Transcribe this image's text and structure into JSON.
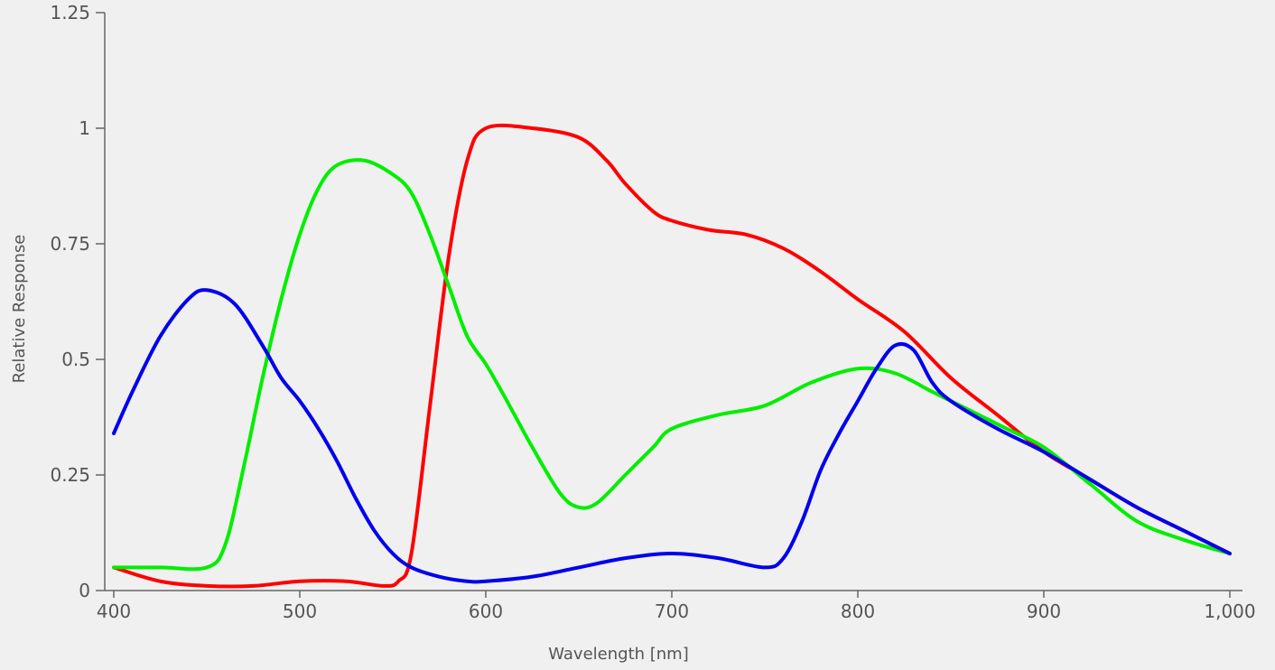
{
  "chart_data": {
    "type": "line",
    "title": "",
    "xlabel": "Wavelength [nm]",
    "ylabel": "Relative Response",
    "xlim": [
      400,
      1000
    ],
    "ylim": [
      0,
      1.25
    ],
    "x_ticks": [
      {
        "value": 400,
        "label": "400"
      },
      {
        "value": 500,
        "label": "500"
      },
      {
        "value": 600,
        "label": "600"
      },
      {
        "value": 700,
        "label": "700"
      },
      {
        "value": 800,
        "label": "800"
      },
      {
        "value": 900,
        "label": "900"
      },
      {
        "value": 1000,
        "label": "1,000"
      }
    ],
    "y_ticks": [
      {
        "value": 0,
        "label": "0"
      },
      {
        "value": 0.25,
        "label": "0.25"
      },
      {
        "value": 0.5,
        "label": "0.5"
      },
      {
        "value": 0.75,
        "label": "0.75"
      },
      {
        "value": 1,
        "label": "1"
      },
      {
        "value": 1.25,
        "label": "1.25"
      }
    ],
    "grid": false,
    "legend": "none",
    "series": [
      {
        "color": "#ff0000",
        "points": [
          [
            400,
            0.05
          ],
          [
            425,
            0.02
          ],
          [
            450,
            0.01
          ],
          [
            475,
            0.01
          ],
          [
            500,
            0.02
          ],
          [
            525,
            0.02
          ],
          [
            545,
            0.01
          ],
          [
            553,
            0.02
          ],
          [
            560,
            0.08
          ],
          [
            570,
            0.4
          ],
          [
            580,
            0.72
          ],
          [
            590,
            0.93
          ],
          [
            600,
            1.0
          ],
          [
            625,
            1.0
          ],
          [
            650,
            0.98
          ],
          [
            665,
            0.93
          ],
          [
            675,
            0.88
          ],
          [
            690,
            0.82
          ],
          [
            700,
            0.8
          ],
          [
            720,
            0.78
          ],
          [
            740,
            0.77
          ],
          [
            760,
            0.74
          ],
          [
            780,
            0.69
          ],
          [
            800,
            0.63
          ],
          [
            825,
            0.56
          ],
          [
            850,
            0.46
          ],
          [
            875,
            0.38
          ],
          [
            900,
            0.3
          ],
          [
            925,
            0.24
          ],
          [
            950,
            0.18
          ],
          [
            975,
            0.13
          ],
          [
            1000,
            0.08
          ]
        ]
      },
      {
        "color": "#00ee00",
        "points": [
          [
            400,
            0.05
          ],
          [
            425,
            0.05
          ],
          [
            450,
            0.05
          ],
          [
            460,
            0.1
          ],
          [
            470,
            0.27
          ],
          [
            480,
            0.46
          ],
          [
            490,
            0.63
          ],
          [
            500,
            0.77
          ],
          [
            510,
            0.87
          ],
          [
            520,
            0.92
          ],
          [
            535,
            0.93
          ],
          [
            550,
            0.9
          ],
          [
            560,
            0.86
          ],
          [
            570,
            0.77
          ],
          [
            580,
            0.66
          ],
          [
            590,
            0.55
          ],
          [
            600,
            0.49
          ],
          [
            610,
            0.42
          ],
          [
            625,
            0.31
          ],
          [
            640,
            0.21
          ],
          [
            650,
            0.18
          ],
          [
            660,
            0.19
          ],
          [
            675,
            0.25
          ],
          [
            690,
            0.31
          ],
          [
            700,
            0.35
          ],
          [
            725,
            0.38
          ],
          [
            750,
            0.4
          ],
          [
            775,
            0.45
          ],
          [
            800,
            0.48
          ],
          [
            820,
            0.47
          ],
          [
            840,
            0.43
          ],
          [
            860,
            0.39
          ],
          [
            880,
            0.35
          ],
          [
            900,
            0.31
          ],
          [
            925,
            0.23
          ],
          [
            950,
            0.15
          ],
          [
            975,
            0.11
          ],
          [
            1000,
            0.08
          ]
        ]
      },
      {
        "color": "#0000ee",
        "points": [
          [
            400,
            0.34
          ],
          [
            410,
            0.43
          ],
          [
            425,
            0.55
          ],
          [
            440,
            0.63
          ],
          [
            450,
            0.65
          ],
          [
            465,
            0.62
          ],
          [
            480,
            0.53
          ],
          [
            490,
            0.46
          ],
          [
            500,
            0.41
          ],
          [
            510,
            0.35
          ],
          [
            520,
            0.28
          ],
          [
            530,
            0.2
          ],
          [
            540,
            0.13
          ],
          [
            550,
            0.08
          ],
          [
            560,
            0.05
          ],
          [
            575,
            0.03
          ],
          [
            590,
            0.02
          ],
          [
            600,
            0.02
          ],
          [
            625,
            0.03
          ],
          [
            650,
            0.05
          ],
          [
            675,
            0.07
          ],
          [
            700,
            0.08
          ],
          [
            725,
            0.07
          ],
          [
            750,
            0.05
          ],
          [
            760,
            0.07
          ],
          [
            770,
            0.15
          ],
          [
            780,
            0.26
          ],
          [
            790,
            0.34
          ],
          [
            800,
            0.41
          ],
          [
            810,
            0.48
          ],
          [
            820,
            0.53
          ],
          [
            830,
            0.52
          ],
          [
            840,
            0.45
          ],
          [
            850,
            0.41
          ],
          [
            875,
            0.35
          ],
          [
            900,
            0.3
          ],
          [
            925,
            0.24
          ],
          [
            950,
            0.18
          ],
          [
            975,
            0.13
          ],
          [
            1000,
            0.08
          ]
        ]
      }
    ]
  }
}
